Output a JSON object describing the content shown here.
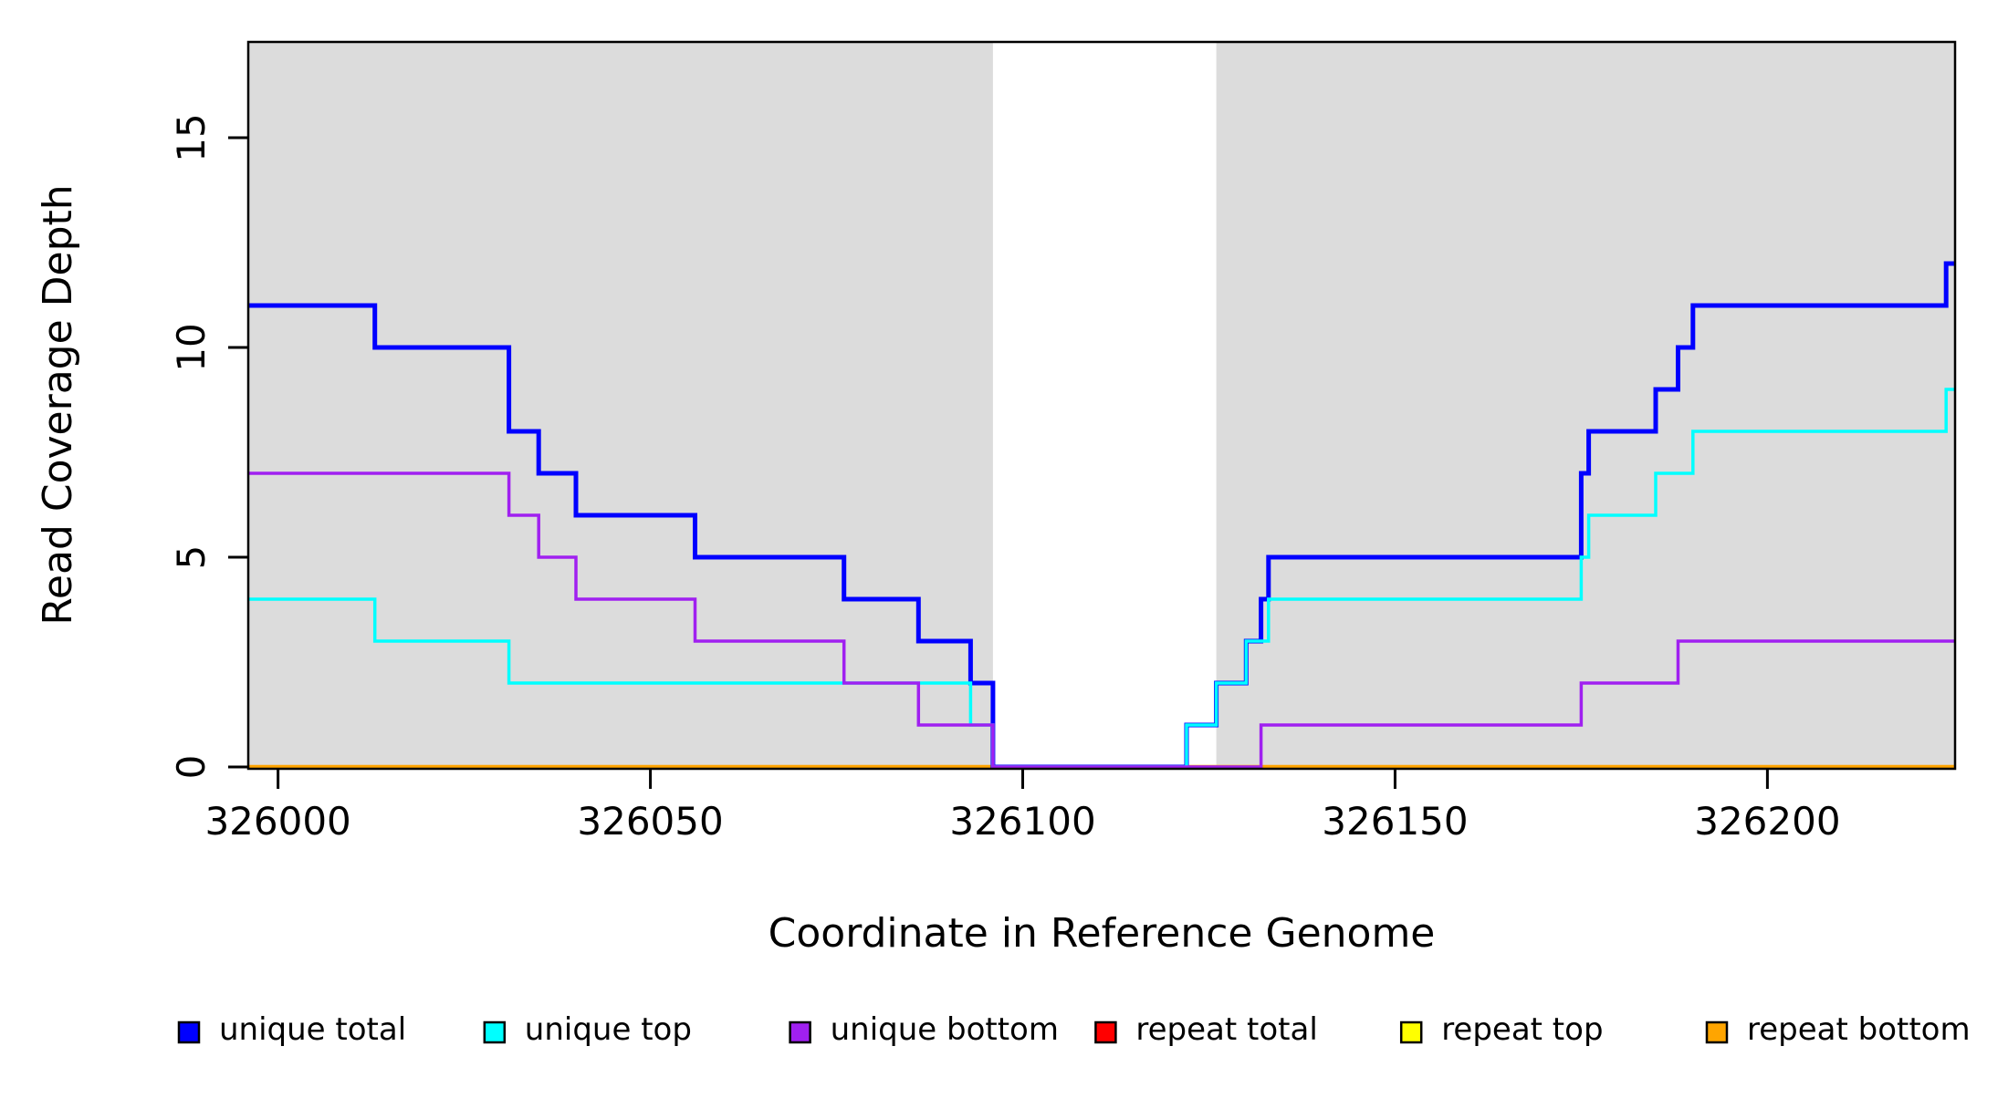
{
  "figure": {
    "background": "#ffffff",
    "plot_background": "#ffffff"
  },
  "chart_data": {
    "type": "line",
    "subtype": "step",
    "title": "",
    "xlabel": "Coordinate in Reference Genome",
    "ylabel": "Read Coverage Depth",
    "xlim": [
      325996,
      326225.2
    ],
    "ylim": [
      0,
      17.3
    ],
    "x_ticks": [
      326000,
      326050,
      326100,
      326150,
      326200
    ],
    "y_ticks": [
      0,
      5,
      10,
      15
    ],
    "grid": false,
    "box": true,
    "legend_position": "bottom-horizontal",
    "shaded_regions": [
      {
        "name": "left-highlight",
        "x0": 325996,
        "x1": 326096,
        "color": "#DCDCDC"
      },
      {
        "name": "right-highlight",
        "x0": 326126,
        "x1": 326225.2,
        "color": "#DCDCDC"
      }
    ],
    "series": [
      {
        "name": "repeat total",
        "color": "#FF0000",
        "width": 3.5,
        "points": [
          [
            325996,
            0
          ],
          [
            326225.2,
            0
          ]
        ]
      },
      {
        "name": "repeat top",
        "color": "#FFFF00",
        "width": 3.5,
        "points": [
          [
            325996,
            0
          ],
          [
            326225.2,
            0
          ]
        ]
      },
      {
        "name": "repeat bottom",
        "color": "#FFA500",
        "width": 4.5,
        "points": [
          [
            325996,
            0
          ],
          [
            326225.2,
            0
          ]
        ]
      },
      {
        "name": "unique total",
        "color": "#0000FF",
        "width": 5,
        "points": [
          [
            325996,
            11
          ],
          [
            326013,
            10
          ],
          [
            326031,
            8
          ],
          [
            326035,
            7
          ],
          [
            326040,
            6
          ],
          [
            326056,
            5
          ],
          [
            326076,
            4
          ],
          [
            326086,
            3
          ],
          [
            326093,
            2
          ],
          [
            326096,
            0
          ],
          [
            326122,
            1
          ],
          [
            326126,
            2
          ],
          [
            326130,
            3
          ],
          [
            326132,
            4
          ],
          [
            326133,
            5
          ],
          [
            326175,
            7
          ],
          [
            326176,
            8
          ],
          [
            326185,
            9
          ],
          [
            326188,
            10
          ],
          [
            326190,
            11
          ],
          [
            326224,
            12
          ],
          [
            326225.2,
            12
          ]
        ]
      },
      {
        "name": "unique top",
        "color": "#00FFFF",
        "width": 3.5,
        "points": [
          [
            325996,
            4
          ],
          [
            326013,
            3
          ],
          [
            326031,
            2
          ],
          [
            326093,
            1
          ],
          [
            326096,
            0
          ],
          [
            326122,
            1
          ],
          [
            326126,
            2
          ],
          [
            326130,
            3
          ],
          [
            326133,
            4
          ],
          [
            326175,
            5
          ],
          [
            326176,
            6
          ],
          [
            326185,
            7
          ],
          [
            326190,
            8
          ],
          [
            326224,
            9
          ],
          [
            326225.2,
            9
          ]
        ]
      },
      {
        "name": "unique bottom",
        "color": "#A020F0",
        "width": 3.5,
        "points": [
          [
            325996,
            7
          ],
          [
            326031,
            6
          ],
          [
            326035,
            5
          ],
          [
            326040,
            4
          ],
          [
            326056,
            3
          ],
          [
            326076,
            2
          ],
          [
            326086,
            1
          ],
          [
            326096,
            0
          ],
          [
            326132,
            1
          ],
          [
            326175,
            2
          ],
          [
            326188,
            3
          ],
          [
            326225.2,
            3
          ]
        ]
      }
    ],
    "legend": [
      {
        "label": "unique total",
        "color": "#0000FF"
      },
      {
        "label": "unique top",
        "color": "#00FFFF"
      },
      {
        "label": "unique bottom",
        "color": "#A020F0"
      },
      {
        "label": "repeat total",
        "color": "#FF0000"
      },
      {
        "label": "repeat top",
        "color": "#FFFF00"
      },
      {
        "label": "repeat bottom",
        "color": "#FFA500"
      }
    ]
  }
}
